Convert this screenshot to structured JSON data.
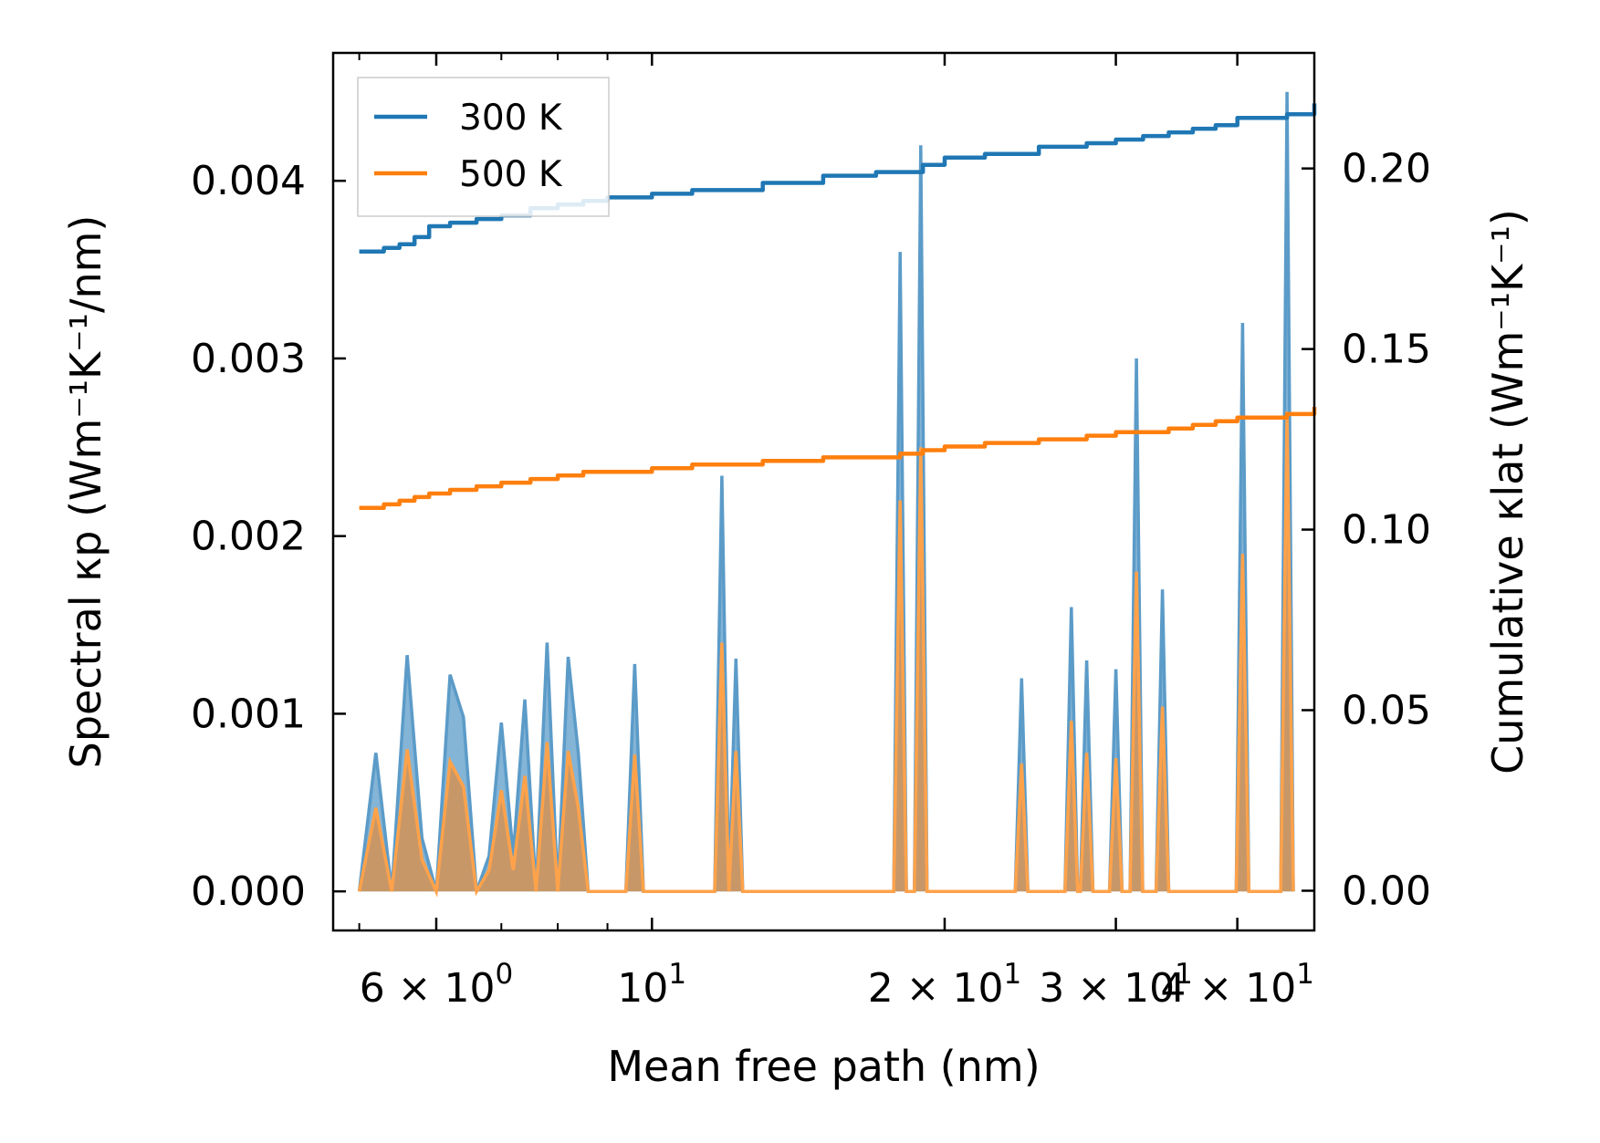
{
  "chart_data": {
    "type": "line",
    "title": "",
    "xlabel": "Mean free path (nm)",
    "ylabel_left": "Spectral κp (Wm⁻¹K⁻¹/nm)",
    "ylabel_right": "Cumulative κlat (Wm⁻¹K⁻¹)",
    "xscale": "log",
    "xlim": [
      4.7,
      48
    ],
    "ylim_left": [
      -0.00022,
      0.00472
    ],
    "ylim_right": [
      -0.011,
      0.232
    ],
    "legend_position": "top-left",
    "x_ticks": [
      {
        "value": 6,
        "mantissa": "6",
        "exp": "0"
      },
      {
        "value": 10,
        "mantissa": "",
        "exp": "1"
      },
      {
        "value": 20,
        "mantissa": "2",
        "exp": "1"
      },
      {
        "value": 30,
        "mantissa": "3",
        "exp": "1"
      },
      {
        "value": 40,
        "mantissa": "4",
        "exp": "1"
      }
    ],
    "y_ticks_left": [
      "0.000",
      "0.001",
      "0.002",
      "0.003",
      "0.004"
    ],
    "y_ticks_right": [
      "0.00",
      "0.05",
      "0.10",
      "0.15",
      "0.20"
    ],
    "spectral_x": [
      5.0,
      5.2,
      5.4,
      5.6,
      5.8,
      6.0,
      6.2,
      6.4,
      6.6,
      6.8,
      7.0,
      7.2,
      7.4,
      7.6,
      7.8,
      8.0,
      8.2,
      8.4,
      8.6,
      8.8,
      9.0,
      9.2,
      9.4,
      9.6,
      9.8,
      10.0,
      10.2,
      10.4,
      10.6,
      10.8,
      11.0,
      11.2,
      11.4,
      11.6,
      11.8,
      12.0,
      12.2,
      12.4,
      12.6,
      12.8,
      13.0
    ],
    "series": [
      {
        "name": "300 K",
        "color": "#1f77b4",
        "cumulative_x": [
          5.0,
          5.3,
          5.5,
          5.7,
          5.9,
          6.2,
          6.6,
          7.0,
          7.5,
          8.0,
          8.5,
          9.0,
          10.0,
          11.0,
          12.0,
          13.0,
          15.0,
          17.0,
          18.0,
          19.0,
          20.0,
          22.0,
          25.0,
          28.0,
          30.0,
          32.0,
          34.0,
          36.0,
          38.0,
          40.0,
          45.0,
          48.0
        ],
        "cumulative_y": [
          0.177,
          0.178,
          0.179,
          0.181,
          0.184,
          0.185,
          0.186,
          0.187,
          0.189,
          0.19,
          0.191,
          0.192,
          0.193,
          0.194,
          0.194,
          0.196,
          0.198,
          0.199,
          0.199,
          0.201,
          0.203,
          0.204,
          0.206,
          0.207,
          0.208,
          0.209,
          0.21,
          0.211,
          0.212,
          0.214,
          0.215,
          0.218
        ],
        "spectral_y": [
          0.0,
          0.00078,
          0.0,
          0.00133,
          0.0003,
          0.0,
          0.00122,
          0.00098,
          0.0,
          0.0002,
          0.00095,
          0.0002,
          0.00108,
          0.0,
          0.0014,
          0.0,
          0.00132,
          0.00078,
          0.0,
          0.0,
          0.0,
          0.0,
          0.0,
          0.00128,
          0.0,
          0.0,
          0.0,
          0.0,
          0.0,
          0.0,
          0.0,
          0.0,
          0.0,
          0.0,
          0.00234,
          0.0,
          0.00131,
          0.0,
          0.0,
          0.0,
          0.0
        ]
      },
      {
        "name": "500 K",
        "color": "#ff7f0e",
        "cumulative_x": [
          5.0,
          5.3,
          5.5,
          5.7,
          5.9,
          6.2,
          6.6,
          7.0,
          7.5,
          8.0,
          8.5,
          9.0,
          10.0,
          11.0,
          12.0,
          13.0,
          15.0,
          17.0,
          18.0,
          19.0,
          20.0,
          22.0,
          25.0,
          28.0,
          30.0,
          32.0,
          34.0,
          36.0,
          38.0,
          40.0,
          45.0,
          48.0
        ],
        "cumulative_y": [
          0.106,
          0.107,
          0.108,
          0.109,
          0.11,
          0.111,
          0.112,
          0.113,
          0.114,
          0.115,
          0.116,
          0.116,
          0.117,
          0.118,
          0.118,
          0.119,
          0.12,
          0.12,
          0.121,
          0.122,
          0.123,
          0.124,
          0.125,
          0.126,
          0.127,
          0.127,
          0.128,
          0.129,
          0.13,
          0.131,
          0.132,
          0.134
        ],
        "spectral_y": [
          0.0,
          0.00047,
          0.0,
          0.0008,
          0.00018,
          0.0,
          0.00073,
          0.00059,
          0.0,
          0.00012,
          0.00057,
          0.00012,
          0.00065,
          0.0,
          0.00084,
          0.0,
          0.00079,
          0.00047,
          0.0,
          0.0,
          0.0,
          0.0,
          0.0,
          0.00077,
          0.0,
          0.0,
          0.0,
          0.0,
          0.0,
          0.0,
          0.0,
          0.0,
          0.0,
          0.0,
          0.0014,
          0.0,
          0.00079,
          0.0,
          0.0,
          0.0,
          0.0
        ]
      }
    ],
    "spectral_spikes": [
      {
        "x": 18.0,
        "y300": 0.0036,
        "y500": 0.0022
      },
      {
        "x": 18.9,
        "y300": 0.0042,
        "y500": 0.0025
      },
      {
        "x": 24.0,
        "y300": 0.0012,
        "y500": 0.00072
      },
      {
        "x": 27.0,
        "y300": 0.0016,
        "y500": 0.00096
      },
      {
        "x": 28.0,
        "y300": 0.0013,
        "y500": 0.00078
      },
      {
        "x": 30.0,
        "y300": 0.00125,
        "y500": 0.00075
      },
      {
        "x": 31.5,
        "y300": 0.003,
        "y500": 0.0018
      },
      {
        "x": 33.5,
        "y300": 0.0017,
        "y500": 0.00104
      },
      {
        "x": 40.5,
        "y300": 0.0032,
        "y500": 0.0019
      },
      {
        "x": 45.0,
        "y300": 0.0045,
        "y500": 0.0027
      }
    ]
  }
}
